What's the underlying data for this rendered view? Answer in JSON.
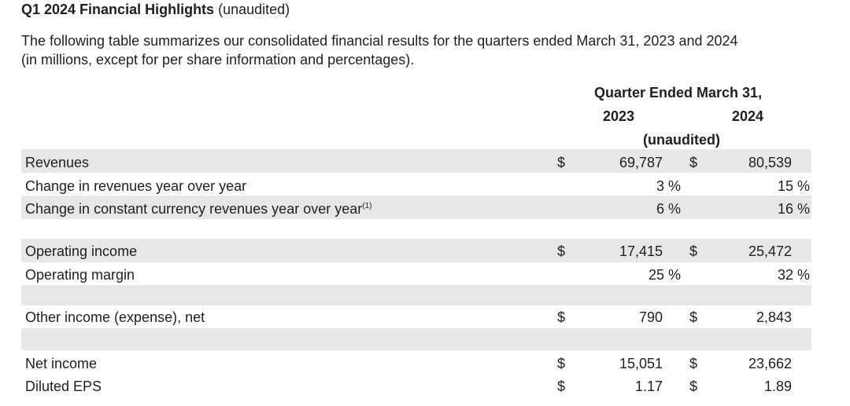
{
  "title": {
    "bold": "Q1 2024 Financial Highlights",
    "normal": "(unaudited)"
  },
  "intro": {
    "line1": "The following table summarizes our consolidated financial results for the quarters ended March 31, 2023 and 2024",
    "line2": "(in millions, except for per share information and percentages)."
  },
  "table": {
    "period_header": "Quarter Ended March 31,",
    "year1": "2023",
    "year2": "2024",
    "subheader": "(unaudited)",
    "currency_symbol": "$",
    "rows": {
      "revenues": {
        "label": "Revenues",
        "v2023": "69,787",
        "v2024": "80,539"
      },
      "rev_change": {
        "label": "Change in revenues year over year",
        "v2023": "3 %",
        "v2024": "15 %"
      },
      "cc_change": {
        "label": "Change in constant currency revenues year over year",
        "footnote": "(1)",
        "v2023": "6 %",
        "v2024": "16 %"
      },
      "op_income": {
        "label": "Operating income",
        "v2023": "17,415",
        "v2024": "25,472"
      },
      "op_margin": {
        "label": "Operating margin",
        "v2023": "25 %",
        "v2024": "32 %"
      },
      "other_income": {
        "label": "Other income (expense), net",
        "v2023": "790",
        "v2024": "2,843"
      },
      "net_income": {
        "label": "Net income",
        "v2023": "15,051",
        "v2024": "23,662"
      },
      "diluted_eps": {
        "label": "Diluted EPS",
        "v2023": "1.17",
        "v2024": "1.89"
      }
    }
  },
  "colors": {
    "band": "#e7e7e7",
    "text": "#1f1f1f"
  }
}
